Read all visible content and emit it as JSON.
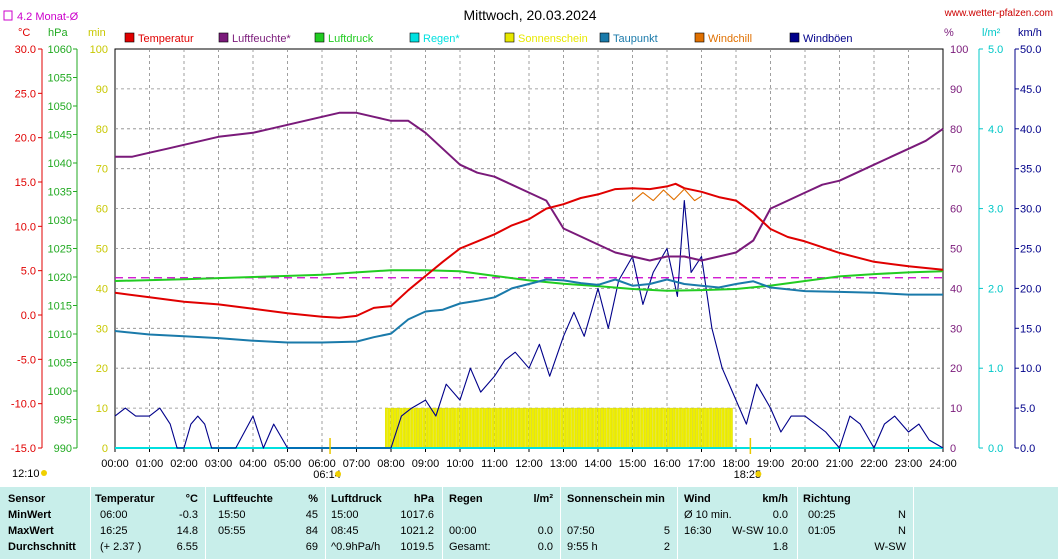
{
  "header": {
    "title": "Mittwoch, 20.03.2024",
    "site": "www.wetter-pfalzen.com",
    "monthly_avg_label": "4.2 Monat-Ø",
    "unit_c": "°C",
    "unit_hpa": "hPa",
    "unit_min": "min",
    "unit_pct": "%",
    "unit_lm2": "l/m²",
    "unit_kmh": "km/h"
  },
  "legend": [
    {
      "name": "Temperatur",
      "color": "#e00000"
    },
    {
      "name": "Luftfeuchte*",
      "color": "#7a1a7a"
    },
    {
      "name": "Luftdruck",
      "color": "#22cc22"
    },
    {
      "name": "Regen*",
      "color": "#00e0e0"
    },
    {
      "name": "Sonnenschein",
      "color": "#e8e800"
    },
    {
      "name": "Taupunkt",
      "color": "#1a7aaa"
    },
    {
      "name": "Windchill",
      "color": "#e07000"
    },
    {
      "name": "Windböen",
      "color": "#00008a"
    }
  ],
  "chart_data": {
    "type": "line",
    "x_ticks": [
      "00:00",
      "01:00",
      "02:00",
      "03:00",
      "04:00",
      "05:00",
      "06:00",
      "07:00",
      "08:00",
      "09:00",
      "10:00",
      "11:00",
      "12:00",
      "13:00",
      "14:00",
      "15:00",
      "16:00",
      "17:00",
      "18:00",
      "19:00",
      "20:00",
      "21:00",
      "22:00",
      "23:00",
      "24:00"
    ],
    "axes": {
      "temperature": {
        "unit": "°C",
        "range": [
          -15,
          30
        ],
        "ticks": [
          "30.0",
          "25.0",
          "20.0",
          "15.0",
          "10.0",
          "5.0",
          "0.0",
          "-5.0",
          "-10.0",
          "-15.0"
        ]
      },
      "pressure": {
        "unit": "hPa",
        "range": [
          990,
          1060
        ],
        "ticks": [
          "1060",
          "1055",
          "1050",
          "1045",
          "1040",
          "1035",
          "1030",
          "1025",
          "1020",
          "1015",
          "1010",
          "1005",
          "1000",
          "995",
          "990"
        ]
      },
      "sunshine": {
        "unit": "min",
        "range": [
          0,
          100
        ],
        "ticks": [
          "100",
          "90",
          "80",
          "70",
          "60",
          "50",
          "40",
          "30",
          "20",
          "10",
          "0"
        ]
      },
      "humidity": {
        "unit": "%",
        "range": [
          0,
          100
        ],
        "ticks": [
          "100",
          "90",
          "80",
          "70",
          "60",
          "50",
          "40",
          "30",
          "20",
          "10",
          "0"
        ]
      },
      "rain": {
        "unit": "l/m²",
        "range": [
          0,
          5
        ],
        "ticks": [
          "5.0",
          "4.0",
          "3.0",
          "2.0",
          "1.0",
          "0.0"
        ]
      },
      "wind": {
        "unit": "km/h",
        "range": [
          0,
          50
        ],
        "ticks": [
          "50.0",
          "45.0",
          "40.0",
          "35.0",
          "30.0",
          "25.0",
          "20.0",
          "15.0",
          "10.0",
          "5.0",
          "0.0"
        ]
      }
    },
    "monthly_avg_temperature": 4.2,
    "sunrise": "06:14",
    "sunset": "18:25",
    "series": [
      {
        "name": "Temperatur",
        "axis": "temperature",
        "x": [
          0,
          1,
          2,
          3,
          4,
          5,
          6,
          6.5,
          7,
          7.5,
          8,
          8.5,
          9,
          9.5,
          10,
          10.5,
          11,
          11.5,
          12,
          12.5,
          13,
          13.5,
          14,
          14.5,
          15,
          15.5,
          16,
          16.25,
          16.5,
          17,
          17.5,
          18,
          18.5,
          19,
          19.5,
          20,
          21,
          22,
          23,
          24
        ],
        "values": [
          2.5,
          2.0,
          1.5,
          1.2,
          0.7,
          0.2,
          -0.2,
          -0.3,
          -0.1,
          0.8,
          1.0,
          2.8,
          4.4,
          6.0,
          7.5,
          8.3,
          9.1,
          10.1,
          10.8,
          12.0,
          12.5,
          13.2,
          13.6,
          14.2,
          14.3,
          14.2,
          14.5,
          14.8,
          14.3,
          13.9,
          13.3,
          12.9,
          11.5,
          9.7,
          8.8,
          8.3,
          7.0,
          6.0,
          5.5,
          5.1
        ]
      },
      {
        "name": "Luftfeuchte*",
        "axis": "humidity",
        "x": [
          0,
          0.5,
          1,
          1.5,
          2,
          2.5,
          3,
          3.5,
          4,
          4.5,
          5,
          5.5,
          6,
          6.5,
          7,
          7.5,
          8,
          8.5,
          9,
          9.5,
          10,
          10.5,
          11,
          11.5,
          12,
          12.5,
          13,
          13.5,
          14,
          14.5,
          15,
          15.5,
          16,
          16.5,
          17,
          17.5,
          18,
          18.5,
          19,
          19.5,
          20,
          20.5,
          21,
          21.5,
          22,
          22.5,
          23,
          23.5,
          24
        ],
        "values": [
          73,
          73,
          74,
          75,
          76,
          77,
          78,
          78.5,
          79,
          80,
          81,
          82,
          83,
          84,
          84,
          83,
          82,
          82,
          79,
          75,
          71,
          69,
          68,
          66,
          64,
          62,
          55,
          53,
          51,
          49,
          48,
          47,
          48,
          48,
          47,
          48,
          49,
          52,
          60,
          62,
          64,
          66,
          67,
          69,
          71,
          73,
          75,
          77,
          80
        ]
      },
      {
        "name": "Luftdruck",
        "axis": "pressure",
        "x": [
          0,
          2,
          4,
          6,
          7,
          8,
          9,
          10,
          11,
          12,
          13,
          14,
          15,
          16,
          17,
          18,
          19,
          20,
          21,
          22,
          23,
          24
        ],
        "values": [
          1019.3,
          1019.6,
          1020.0,
          1020.4,
          1020.8,
          1021.2,
          1021.2,
          1021.0,
          1020.2,
          1019.4,
          1018.8,
          1018.4,
          1017.9,
          1017.6,
          1017.7,
          1017.9,
          1018.5,
          1019.3,
          1020.1,
          1020.5,
          1020.8,
          1021.0
        ]
      },
      {
        "name": "Regen*",
        "axis": "rain",
        "x": [
          0,
          24
        ],
        "values": [
          0,
          0
        ]
      },
      {
        "name": "Taupunkt",
        "axis": "temperature",
        "x": [
          0,
          1,
          2,
          3,
          4,
          5,
          6,
          7,
          7.5,
          8,
          8.5,
          9,
          9.5,
          10,
          10.5,
          11,
          11.5,
          12,
          12.5,
          13,
          13.5,
          14,
          14.5,
          15,
          15.5,
          16,
          16.5,
          17,
          17.5,
          18,
          18.5,
          19,
          20,
          21,
          22,
          23,
          24
        ],
        "values": [
          -1.8,
          -2.2,
          -2.4,
          -2.6,
          -2.9,
          -3.1,
          -3.1,
          -3.0,
          -2.5,
          -2.1,
          -0.5,
          0.4,
          0.6,
          1.3,
          1.6,
          2.0,
          3.0,
          3.5,
          4.0,
          3.9,
          3.6,
          3.4,
          4.0,
          3.3,
          3.5,
          4.0,
          3.5,
          3.3,
          3.1,
          3.5,
          3.8,
          3.1,
          2.7,
          2.6,
          2.5,
          2.3,
          2.3
        ]
      },
      {
        "name": "Windchill",
        "axis": "temperature",
        "x": [
          15,
          15.3,
          15.6,
          15.9,
          16.2,
          16.5,
          16.8,
          17
        ],
        "values": [
          12.8,
          13.8,
          12.9,
          14.1,
          13.0,
          14.2,
          12.9,
          13.4
        ]
      },
      {
        "name": "Windböen",
        "axis": "wind",
        "x": [
          0,
          0.3,
          0.6,
          1,
          1.3,
          1.6,
          1.8,
          2,
          2.2,
          2.4,
          2.6,
          2.8,
          3,
          3.5,
          4,
          4.3,
          4.6,
          5,
          5.5,
          6,
          6.5,
          7,
          7.5,
          8,
          8.3,
          8.6,
          9,
          9.3,
          9.6,
          10,
          10.3,
          10.6,
          11,
          11.3,
          11.6,
          12,
          12.3,
          12.6,
          13,
          13.3,
          13.6,
          14,
          14.3,
          14.6,
          15,
          15.3,
          15.6,
          16,
          16.3,
          16.5,
          16.7,
          17,
          17.3,
          17.6,
          18,
          18.3,
          18.6,
          19,
          19.3,
          19.6,
          20,
          20.3,
          20.6,
          21,
          21.3,
          21.6,
          22,
          22.3,
          22.6,
          23,
          23.3,
          23.6,
          24
        ],
        "values": [
          4,
          5,
          4,
          4,
          5,
          3,
          0,
          0,
          3,
          4,
          3,
          0,
          0,
          0,
          4,
          0,
          3,
          0,
          0,
          0,
          0,
          0,
          0,
          0,
          4,
          5,
          6,
          4,
          8,
          6,
          10,
          7,
          9,
          11,
          12,
          10,
          13,
          9,
          14,
          17,
          14,
          20,
          15,
          21,
          24,
          18,
          22,
          25,
          19,
          31,
          22,
          24,
          15,
          10,
          6,
          3,
          8,
          5,
          2,
          4,
          4,
          3,
          2,
          0,
          4,
          3,
          0,
          3,
          4,
          2,
          3,
          1,
          0
        ]
      }
    ],
    "sunshine_blocks": {
      "start": "07:50",
      "end": "17:55",
      "level": 10
    }
  },
  "stats": {
    "headers": {
      "sensor": "Sensor",
      "temperature": "Temperatur",
      "temperature_unit": "°C",
      "humidity": "Luftfeuchte",
      "humidity_unit": "%",
      "pressure": "Luftdruck",
      "pressure_unit": "hPa",
      "rain": "Regen",
      "rain_unit": "l/m²",
      "sunshine": "Sonnenschein min",
      "wind": "Wind",
      "wind_unit": "km/h",
      "direction": "Richtung"
    },
    "rows": [
      {
        "label": "MinWert",
        "temp_time": "06:00",
        "temp_val": "-0.3",
        "hum_time": "15:50",
        "hum_val": "45",
        "pres_time": "15:00",
        "pres_val": "1017.6",
        "rain_time": "",
        "rain_val": "",
        "sun_time": "",
        "sun_val": "",
        "wind_time": "Ø 10 min.",
        "wind_val": "0.0",
        "dir_time": "00:25",
        "dir_val": "N"
      },
      {
        "label": "MaxWert",
        "temp_time": "16:25",
        "temp_val": "14.8",
        "hum_time": "05:55",
        "hum_val": "84",
        "pres_time": "08:45",
        "pres_val": "1021.2",
        "rain_time": "00:00",
        "rain_val": "0.0",
        "sun_time": "07:50",
        "sun_val": "5",
        "wind_time": "16:30",
        "wind_val": "W-SW 10.0",
        "dir_time": "01:05",
        "dir_val": "N"
      },
      {
        "label": "Durchschnitt",
        "temp_time": "(+ 2.37 )",
        "temp_val": "6.55",
        "hum_time": "",
        "hum_val": "69",
        "pres_time": "^0.9hPa/h",
        "pres_val": "1019.5",
        "rain_time": "Gesamt:",
        "rain_val": "0.0",
        "sun_time": "9:55 h",
        "sun_val": "2",
        "wind_time": "",
        "wind_val": "1.8",
        "dir_time": "",
        "dir_val": "W-SW"
      }
    ]
  }
}
